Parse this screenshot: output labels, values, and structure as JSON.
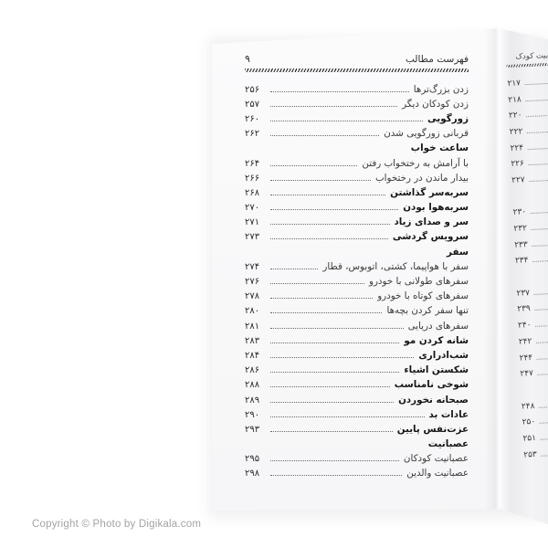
{
  "main_page": {
    "header": {
      "title": "فهرست مطالب",
      "page_number": "۹"
    },
    "entries": [
      {
        "title": "زدن بزرگ‌ترها",
        "page": "۲۵۶",
        "style": "normal"
      },
      {
        "title": "زدن کودکان دیگر",
        "page": "۲۵۷",
        "style": "normal"
      },
      {
        "title": "زورگویی",
        "page": "۲۶۰",
        "style": "bold"
      },
      {
        "title": "قربانی زورگویی شدن",
        "page": "۲۶۲",
        "style": "normal"
      },
      {
        "title": "ساعت خواب",
        "page": "",
        "style": "heading"
      },
      {
        "title": "با آرامش به رختخواب رفتن",
        "page": "۲۶۴",
        "style": "normal"
      },
      {
        "title": "بیدار ماندن در رختخواب",
        "page": "۲۶۶",
        "style": "normal"
      },
      {
        "title": "سربه‌سر گذاشتن",
        "page": "۲۶۸",
        "style": "bold"
      },
      {
        "title": "سربه‌هوا بودن",
        "page": "۲۷۰",
        "style": "bold"
      },
      {
        "title": "سر و صدای زیاد",
        "page": "۲۷۱",
        "style": "bold"
      },
      {
        "title": "سرویس گردشی",
        "page": "۲۷۳",
        "style": "bold"
      },
      {
        "title": "سفر",
        "page": "",
        "style": "heading"
      },
      {
        "title": "سفر با هواپیما، کشتی، اتوبوس، قطار",
        "page": "۲۷۴",
        "style": "normal"
      },
      {
        "title": "سفرهای طولانی با خودرو",
        "page": "۲۷۶",
        "style": "normal"
      },
      {
        "title": "سفرهای کوتاه با خودرو",
        "page": "۲۷۸",
        "style": "normal"
      },
      {
        "title": "تنها سفر کردن بچه‌ها",
        "page": "۲۸۰",
        "style": "normal"
      },
      {
        "title": "سفرهای دریایی",
        "page": "۲۸۱",
        "style": "normal"
      },
      {
        "title": "شانه کردن مو",
        "page": "۲۸۳",
        "style": "bold"
      },
      {
        "title": "شب‌ادراری",
        "page": "۲۸۴",
        "style": "bold"
      },
      {
        "title": "شکستن اشیاء",
        "page": "۲۸۶",
        "style": "bold"
      },
      {
        "title": "شوخی نامناسب",
        "page": "۲۸۸",
        "style": "bold"
      },
      {
        "title": "صبحانه نخوردن",
        "page": "۲۸۹",
        "style": "bold"
      },
      {
        "title": "عادات بد",
        "page": "۲۹۰",
        "style": "bold"
      },
      {
        "title": "عزت‌نفس پایین",
        "page": "۲۹۳",
        "style": "bold"
      },
      {
        "title": "عصبانیت",
        "page": "",
        "style": "heading"
      },
      {
        "title": "عصبانیت کودکان",
        "page": "۲۹۵",
        "style": "normal"
      },
      {
        "title": "عصبانیت والدین",
        "page": "۲۹۸",
        "style": "normal"
      }
    ]
  },
  "side_page": {
    "header_fragment": "بیت کودک",
    "numbers": [
      {
        "num": "۲۱۷"
      },
      {
        "num": "۲۱۸"
      },
      {
        "num": "۲۲۰"
      },
      {
        "num": "۲۲۲"
      },
      {
        "num": "۲۲۴"
      },
      {
        "num": "۲۲۶"
      },
      {
        "num": "۲۲۷"
      },
      {
        "num": ""
      },
      {
        "num": "۲۳۰"
      },
      {
        "num": "۲۳۲"
      },
      {
        "num": "۲۳۳"
      },
      {
        "num": "۲۳۴"
      },
      {
        "num": ""
      },
      {
        "num": "۲۳۷"
      },
      {
        "num": "۲۳۹"
      },
      {
        "num": "۲۴۰"
      },
      {
        "num": "۲۴۲"
      },
      {
        "num": "۲۴۴"
      },
      {
        "num": "۲۴۷"
      },
      {
        "num": ""
      },
      {
        "num": "۲۴۸"
      },
      {
        "num": "۲۵۰"
      },
      {
        "num": "۲۵۱"
      },
      {
        "num": "۲۵۳"
      }
    ]
  },
  "watermark": "Copyright © Photo by Digikala.com",
  "colors": {
    "background": "#ffffff",
    "page": "#f9f9fa",
    "text": "#3a3a3a",
    "bold_text": "#161616",
    "watermark_text": "#a3a3a3"
  }
}
